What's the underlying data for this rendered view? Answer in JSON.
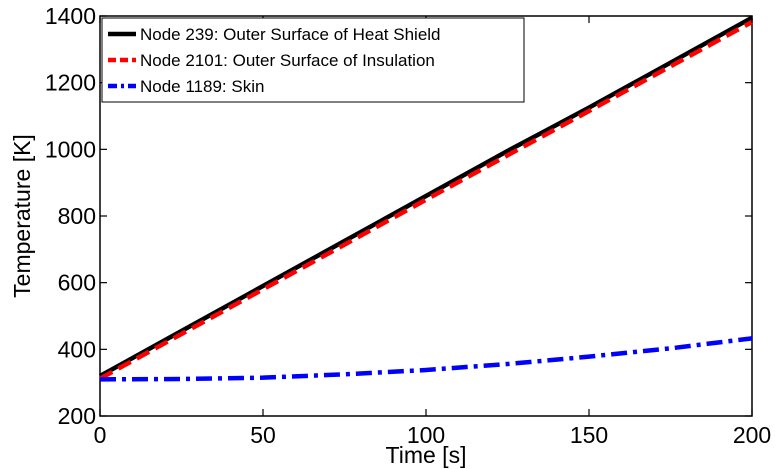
{
  "chart_data": {
    "type": "line",
    "title": "",
    "xlabel": "Time [s]",
    "ylabel": "Temperature [K]",
    "xlim": [
      0,
      200
    ],
    "ylim": [
      200,
      1400
    ],
    "xticks": [
      0,
      50,
      100,
      150,
      200
    ],
    "yticks": [
      200,
      400,
      600,
      800,
      1000,
      1200,
      1400
    ],
    "grid": false,
    "legend_position": "top-left",
    "series": [
      {
        "name": "Node 239: Outer Surface of Heat Shield",
        "color": "#000000",
        "line_style": "solid",
        "x": [
          0,
          25,
          50,
          75,
          100,
          125,
          150,
          175,
          200
        ],
        "y": [
          320,
          455,
          590,
          725,
          860,
          995,
          1125,
          1260,
          1395
        ]
      },
      {
        "name": "Node 2101: Outer Surface of Insulation",
        "color": "#ff0000",
        "line_style": "dashed",
        "x": [
          0,
          25,
          50,
          75,
          100,
          125,
          150,
          175,
          200
        ],
        "y": [
          312,
          446,
          580,
          714,
          849,
          982,
          1115,
          1249,
          1382
        ]
      },
      {
        "name": "Node 1189: Skin",
        "color": "#0000ff",
        "line_style": "dash-dot",
        "x": [
          0,
          25,
          50,
          75,
          100,
          125,
          150,
          175,
          200
        ],
        "y": [
          310,
          311,
          315,
          325,
          338,
          356,
          378,
          403,
          433
        ]
      }
    ]
  }
}
